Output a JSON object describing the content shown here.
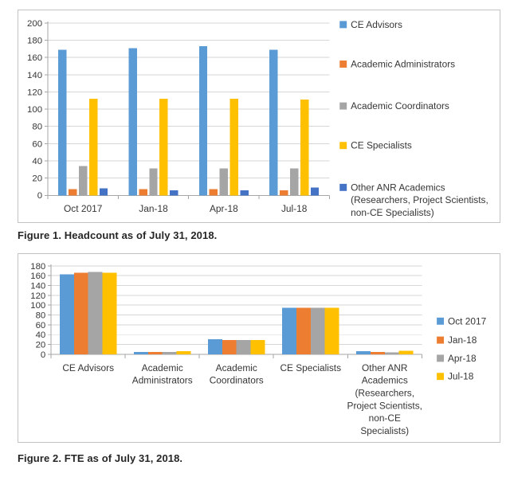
{
  "captions": {
    "figure1": "Figure 1. Headcount as of July 31, 2018.",
    "figure2": "Figure 2. FTE as of July 31, 2018."
  },
  "ui_colors": {
    "background": "#ffffff",
    "chart_border": "#c3c3c3",
    "gridline": "#d6d6d6",
    "axis": "#a6a6a6",
    "text": "#363636",
    "series_blue": "#5B9BD5",
    "series_orange": "#ED7D31",
    "series_gray": "#A5A5A5",
    "series_yellow": "#FFC000",
    "series_dark_blue": "#4472C4"
  },
  "chart_data": [
    {
      "id": "headcount",
      "type": "bar",
      "title": "",
      "xlabel": "",
      "ylabel": "",
      "grid": true,
      "legend_position": "right",
      "ylim": [
        0,
        200
      ],
      "ytick_step": 20,
      "categories": [
        "Oct 2017",
        "Jan-18",
        "Apr-18",
        "Jul-18"
      ],
      "category_lines": [
        [
          "Oct 2017"
        ],
        [
          "Jan-18"
        ],
        [
          "Apr-18"
        ],
        [
          "Jul-18"
        ]
      ],
      "series": [
        {
          "name": "CE Advisors",
          "color": "#5B9BD5",
          "values": [
            169,
            171,
            173,
            169
          ]
        },
        {
          "name": "Academic Administrators",
          "color": "#ED7D31",
          "values": [
            7,
            7,
            7,
            6
          ]
        },
        {
          "name": "Academic Coordinators",
          "color": "#A5A5A5",
          "values": [
            34,
            31,
            31,
            31
          ]
        },
        {
          "name": "CE Specialists",
          "color": "#FFC000",
          "values": [
            112,
            112,
            112,
            111
          ]
        },
        {
          "name": "Other ANR Academics (Researchers, Project Scientists, non-CE Specialists)",
          "color": "#4472C4",
          "values": [
            8,
            6,
            6,
            9
          ]
        }
      ],
      "legend_lines": [
        [
          "CE Advisors"
        ],
        [
          "Academic Administrators"
        ],
        [
          "Academic Coordinators"
        ],
        [
          "CE Specialists"
        ],
        [
          "Other ANR Academics",
          "(Researchers, Project Scientists,",
          "non-CE Specialists)"
        ]
      ]
    },
    {
      "id": "fte",
      "type": "bar",
      "title": "",
      "xlabel": "",
      "ylabel": "",
      "grid": true,
      "legend_position": "right",
      "ylim": [
        0,
        180
      ],
      "ytick_step": 20,
      "categories": [
        "CE Advisors",
        "Academic Administrators",
        "Academic Coordinators",
        "CE Specialists",
        "Other ANR Academics (Researchers, Project Scientists, non-CE Specialists)"
      ],
      "category_lines": [
        [
          "CE Advisors"
        ],
        [
          "Academic",
          "Administrators"
        ],
        [
          "Academic",
          "Coordinators"
        ],
        [
          "CE Specialists"
        ],
        [
          "Other ANR",
          "Academics",
          "(Researchers,",
          "Project Scientists,",
          "non-CE",
          "Specialists)"
        ]
      ],
      "series": [
        {
          "name": "Oct 2017",
          "color": "#5B9BD5",
          "values": [
            163,
            5,
            31,
            95,
            6
          ]
        },
        {
          "name": "Jan-18",
          "color": "#ED7D31",
          "values": [
            166,
            5,
            29,
            95,
            5
          ]
        },
        {
          "name": "Apr-18",
          "color": "#A5A5A5",
          "values": [
            168,
            5,
            29,
            95,
            4
          ]
        },
        {
          "name": "Jul-18",
          "color": "#FFC000",
          "values": [
            166,
            6,
            29,
            95,
            7
          ]
        }
      ],
      "legend_lines": [
        [
          "Oct 2017"
        ],
        [
          "Jan-18"
        ],
        [
          "Apr-18"
        ],
        [
          "Jul-18"
        ]
      ]
    }
  ]
}
